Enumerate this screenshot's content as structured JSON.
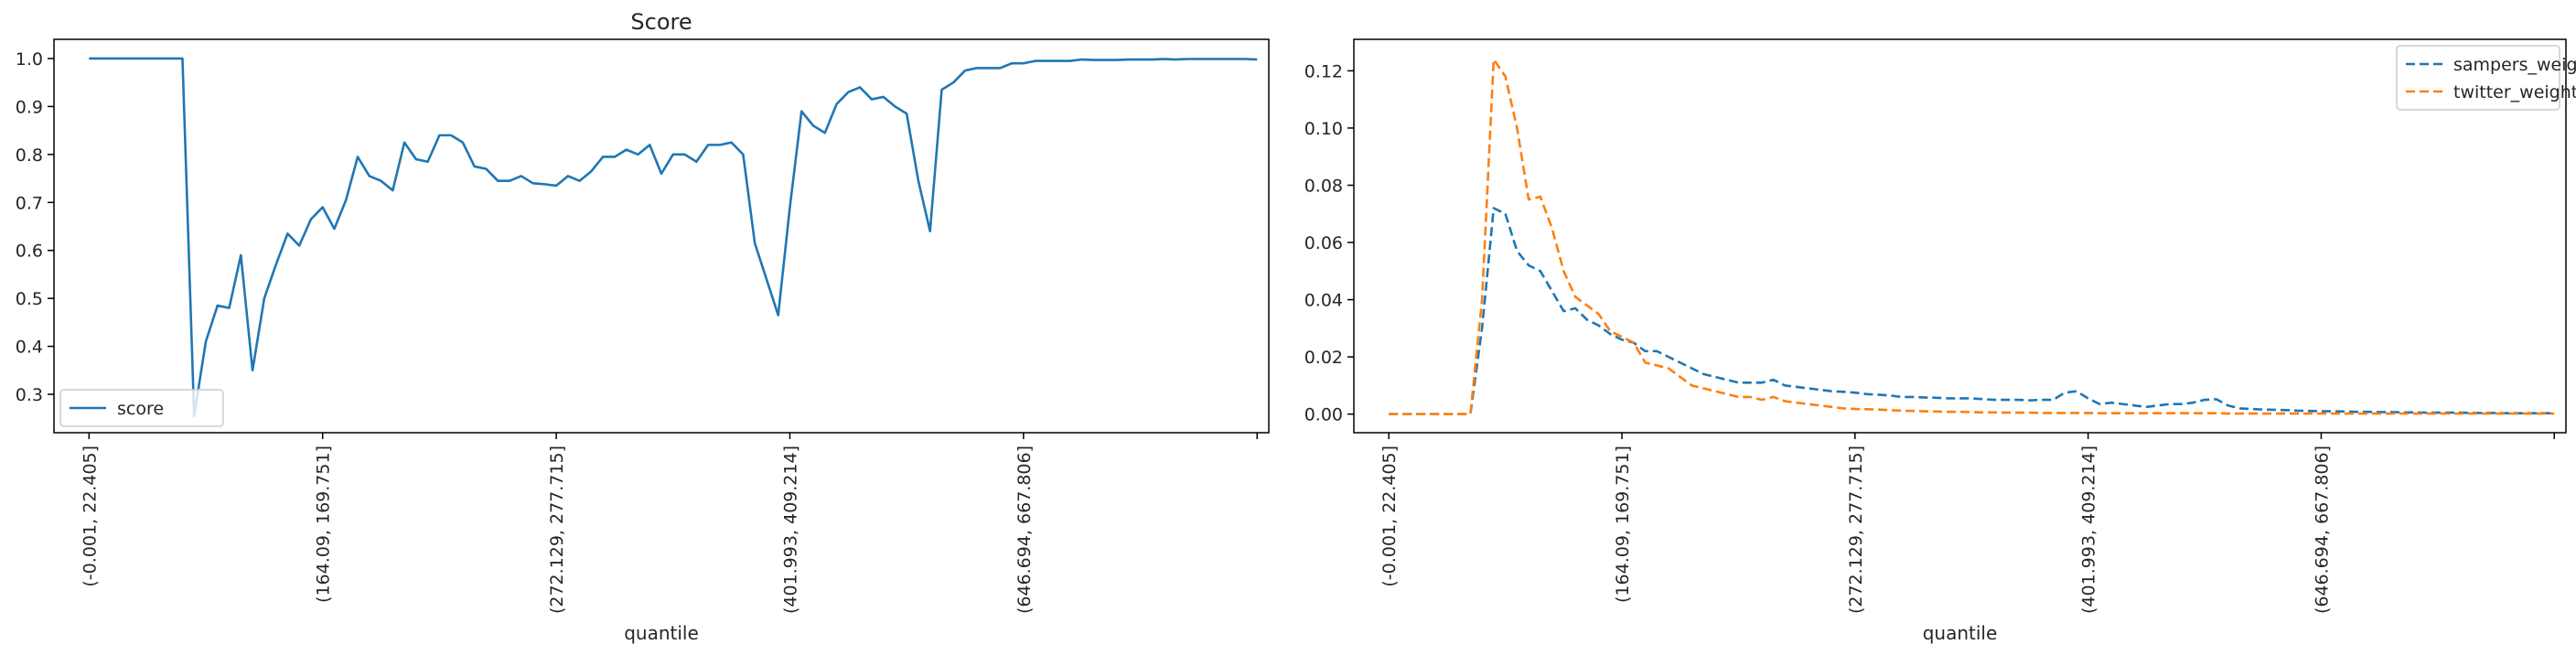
{
  "chart_data": [
    {
      "type": "line",
      "title": "Score",
      "xlabel": "quantile",
      "ylabel": "",
      "categories": [
        "(-0.001, 22.405]",
        "(164.09, 169.751]",
        "(272.129, 277.715]",
        "(401.993, 409.214]",
        "(646.694, 667.806]",
        ""
      ],
      "xlim": [
        -3,
        101
      ],
      "ylim": [
        0.22,
        1.04
      ],
      "yticks": [
        0.3,
        0.4,
        0.5,
        0.6,
        0.7,
        0.8,
        0.9,
        1.0
      ],
      "ytick_labels": [
        "0.3",
        "0.4",
        "0.5",
        "0.6",
        "0.7",
        "0.8",
        "0.9",
        "1.0"
      ],
      "legend_position": "lower left",
      "series": [
        {
          "name": "score",
          "color": "#1f77b4",
          "dash": "solid",
          "x": [
            0,
            1,
            2,
            3,
            4,
            5,
            6,
            7,
            8,
            9,
            10,
            11,
            12,
            13,
            14,
            15,
            16,
            17,
            18,
            19,
            20,
            21,
            22,
            23,
            24,
            25,
            26,
            27,
            28,
            29,
            30,
            31,
            32,
            33,
            34,
            35,
            36,
            37,
            38,
            39,
            40,
            41,
            42,
            43,
            44,
            45,
            46,
            47,
            48,
            49,
            50,
            51,
            52,
            53,
            54,
            55,
            56,
            57,
            58,
            59,
            60,
            61,
            62,
            63,
            64,
            65,
            66,
            67,
            68,
            69,
            70,
            71,
            72,
            73,
            74,
            75,
            76,
            77,
            78,
            79,
            80,
            81,
            82,
            83,
            84,
            85,
            86,
            87,
            88,
            89,
            90,
            91,
            92,
            93,
            94,
            95,
            96,
            97,
            98,
            99,
            100
          ],
          "values": [
            1.0,
            1.0,
            1.0,
            1.0,
            1.0,
            1.0,
            1.0,
            1.0,
            1.0,
            0.255,
            0.41,
            0.485,
            0.48,
            0.59,
            0.35,
            0.5,
            0.57,
            0.635,
            0.61,
            0.665,
            0.69,
            0.645,
            0.705,
            0.795,
            0.755,
            0.745,
            0.725,
            0.825,
            0.79,
            0.785,
            0.84,
            0.84,
            0.825,
            0.775,
            0.77,
            0.745,
            0.745,
            0.755,
            0.74,
            0.738,
            0.735,
            0.755,
            0.745,
            0.765,
            0.795,
            0.795,
            0.81,
            0.8,
            0.82,
            0.76,
            0.8,
            0.8,
            0.785,
            0.82,
            0.82,
            0.825,
            0.8,
            0.615,
            0.54,
            0.465,
            0.69,
            0.89,
            0.86,
            0.845,
            0.905,
            0.93,
            0.94,
            0.915,
            0.92,
            0.9,
            0.885,
            0.745,
            0.64,
            0.935,
            0.95,
            0.975,
            0.98,
            0.98,
            0.98,
            0.99,
            0.99,
            0.995,
            0.995,
            0.995,
            0.995,
            0.998,
            0.997,
            0.997,
            0.997,
            0.998,
            0.998,
            0.998,
            0.999,
            0.998,
            0.999,
            0.999,
            0.999,
            0.999,
            0.999,
            0.999,
            0.998
          ]
        }
      ]
    },
    {
      "type": "line",
      "title": "",
      "xlabel": "quantile",
      "ylabel": "",
      "categories": [
        "(-0.001, 22.405]",
        "(164.09, 169.751]",
        "(272.129, 277.715]",
        "(401.993, 409.214]",
        "(646.694, 667.806]",
        ""
      ],
      "xlim": [
        -3,
        101
      ],
      "ylim": [
        -0.0065,
        0.131
      ],
      "yticks": [
        0.0,
        0.02,
        0.04,
        0.06,
        0.08,
        0.1,
        0.12
      ],
      "ytick_labels": [
        "0.00",
        "0.02",
        "0.04",
        "0.06",
        "0.08",
        "0.10",
        "0.12"
      ],
      "legend_position": "upper right",
      "series": [
        {
          "name": "sampers_weight",
          "color": "#1f77b4",
          "dash": "dashed",
          "x": [
            0,
            1,
            2,
            3,
            4,
            5,
            6,
            7,
            8,
            9,
            10,
            11,
            12,
            13,
            14,
            15,
            16,
            17,
            18,
            19,
            20,
            21,
            22,
            23,
            24,
            25,
            26,
            27,
            28,
            29,
            30,
            31,
            32,
            33,
            34,
            35,
            36,
            37,
            38,
            39,
            40,
            41,
            42,
            43,
            44,
            45,
            46,
            47,
            48,
            49,
            50,
            51,
            52,
            53,
            54,
            55,
            56,
            57,
            58,
            59,
            60,
            61,
            62,
            63,
            64,
            65,
            66,
            67,
            68,
            69,
            70,
            71,
            72,
            73,
            74,
            75,
            76,
            77,
            78,
            79,
            80,
            81,
            82,
            83,
            84,
            85,
            86,
            87,
            88,
            89,
            90,
            91,
            92,
            93,
            94,
            95,
            96,
            97,
            98,
            99,
            100
          ],
          "values": [
            0,
            0,
            0,
            0,
            0,
            0,
            0,
            0,
            0.03,
            0.072,
            0.07,
            0.057,
            0.052,
            0.05,
            0.043,
            0.036,
            0.037,
            0.033,
            0.031,
            0.028,
            0.026,
            0.025,
            0.022,
            0.022,
            0.02,
            0.018,
            0.016,
            0.014,
            0.013,
            0.012,
            0.011,
            0.011,
            0.011,
            0.012,
            0.01,
            0.0095,
            0.009,
            0.0085,
            0.008,
            0.0078,
            0.0075,
            0.007,
            0.0068,
            0.0065,
            0.006,
            0.006,
            0.0058,
            0.0057,
            0.0055,
            0.0055,
            0.0055,
            0.0052,
            0.005,
            0.005,
            0.005,
            0.0048,
            0.005,
            0.005,
            0.0075,
            0.008,
            0.0055,
            0.0035,
            0.004,
            0.0035,
            0.003,
            0.0025,
            0.003,
            0.0035,
            0.0035,
            0.004,
            0.005,
            0.0052,
            0.003,
            0.002,
            0.0018,
            0.0016,
            0.0015,
            0.0014,
            0.0012,
            0.0011,
            0.001,
            0.001,
            0.0009,
            0.0008,
            0.0008,
            0.0007,
            0.0007,
            0.0006,
            0.0006,
            0.0005,
            0.0005,
            0.0005,
            0.0005,
            0.0004,
            0.0004,
            0.0004,
            0.0003,
            0.0003,
            0.0003,
            0.0003,
            0.0003
          ]
        },
        {
          "name": "twitter_weight",
          "color": "#ff7f0e",
          "dash": "dashed",
          "x": [
            0,
            1,
            2,
            3,
            4,
            5,
            6,
            7,
            8,
            9,
            10,
            11,
            12,
            13,
            14,
            15,
            16,
            17,
            18,
            19,
            20,
            21,
            22,
            23,
            24,
            25,
            26,
            27,
            28,
            29,
            30,
            31,
            32,
            33,
            34,
            35,
            36,
            37,
            38,
            39,
            40,
            41,
            42,
            43,
            44,
            45,
            46,
            47,
            48,
            49,
            50,
            51,
            52,
            53,
            54,
            55,
            56,
            57,
            58,
            59,
            60,
            61,
            62,
            63,
            64,
            65,
            66,
            67,
            68,
            69,
            70,
            71,
            72,
            73,
            74,
            75,
            76,
            77,
            78,
            79,
            80,
            81,
            82,
            83,
            84,
            85,
            86,
            87,
            88,
            89,
            90,
            91,
            92,
            93,
            94,
            95,
            96,
            97,
            98,
            99,
            100
          ],
          "values": [
            0,
            0,
            0,
            0,
            0,
            0,
            0,
            0,
            0.04,
            0.124,
            0.118,
            0.1,
            0.075,
            0.076,
            0.065,
            0.05,
            0.041,
            0.038,
            0.035,
            0.029,
            0.027,
            0.025,
            0.018,
            0.017,
            0.016,
            0.013,
            0.01,
            0.009,
            0.008,
            0.007,
            0.006,
            0.006,
            0.005,
            0.006,
            0.0045,
            0.004,
            0.0035,
            0.003,
            0.0025,
            0.002,
            0.0018,
            0.0017,
            0.0016,
            0.0014,
            0.0012,
            0.0011,
            0.001,
            0.0009,
            0.0008,
            0.0008,
            0.0007,
            0.0006,
            0.0006,
            0.0005,
            0.0005,
            0.0005,
            0.0004,
            0.0004,
            0.0004,
            0.0004,
            0.0004,
            0.0003,
            0.0003,
            0.0003,
            0.0003,
            0.0003,
            0.0003,
            0.0003,
            0.0003,
            0.0003,
            0.0003,
            0.0003,
            0.0002,
            0.0002,
            0.0002,
            0.0002,
            0.0002,
            0.0002,
            0.0002,
            0.0002,
            0.0002,
            0.0002,
            0.0002,
            0.0002,
            0.0002,
            0.0002,
            0.0002,
            0.0002,
            0.0002,
            0.0002,
            0.0002,
            0.0002,
            0.0002,
            0.0002,
            0.0002,
            0.0002,
            0.0002,
            0.0002,
            0.0002,
            0.0002,
            0.0002
          ]
        }
      ]
    }
  ]
}
